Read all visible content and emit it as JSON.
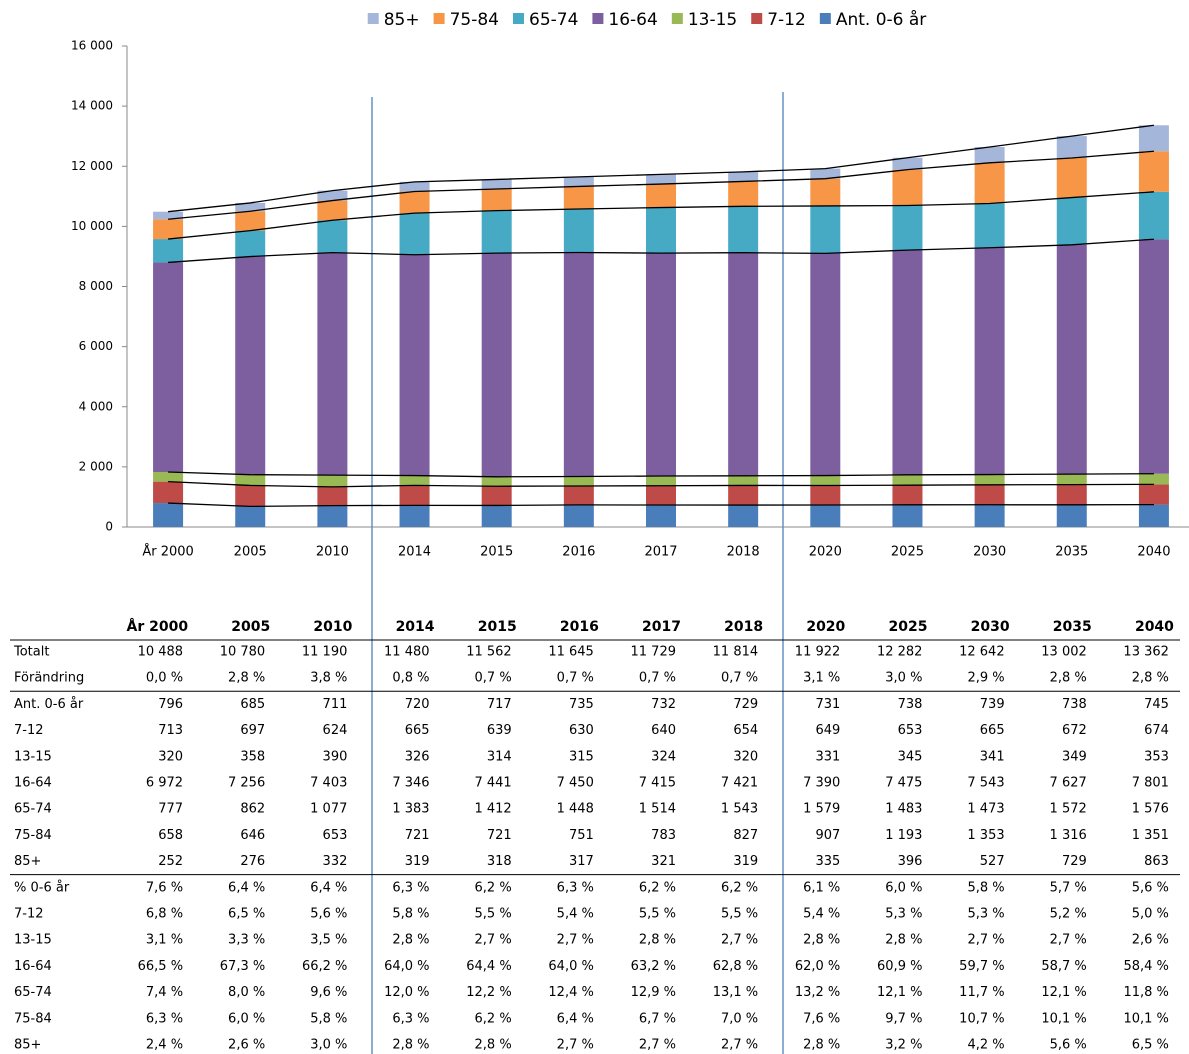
{
  "chart_data": {
    "type": "stacked-bar-line",
    "categories": [
      "År 2000",
      "2005",
      "2010",
      "2014",
      "2015",
      "2016",
      "2017",
      "2018",
      "2020",
      "2025",
      "2030",
      "2035",
      "2040"
    ],
    "series": [
      {
        "name": "Ant. 0-6 år",
        "color": "#4a7ebb",
        "values": [
          796,
          685,
          711,
          720,
          717,
          735,
          732,
          729,
          731,
          738,
          739,
          738,
          745
        ]
      },
      {
        "name": "7-12",
        "color": "#be4b48",
        "values": [
          713,
          697,
          624,
          665,
          639,
          630,
          640,
          654,
          649,
          653,
          665,
          672,
          674
        ]
      },
      {
        "name": "13-15",
        "color": "#98b954",
        "values": [
          320,
          358,
          390,
          326,
          314,
          315,
          324,
          320,
          331,
          345,
          341,
          349,
          353
        ]
      },
      {
        "name": "16-64",
        "color": "#7d5fa0",
        "values": [
          6972,
          7256,
          7403,
          7346,
          7441,
          7450,
          7415,
          7421,
          7390,
          7475,
          7543,
          7627,
          7801
        ]
      },
      {
        "name": "65-74",
        "color": "#46aac5",
        "values": [
          777,
          862,
          1077,
          1383,
          1412,
          1448,
          1514,
          1543,
          1579,
          1483,
          1473,
          1572,
          1576
        ]
      },
      {
        "name": "75-84",
        "color": "#f79646",
        "values": [
          658,
          646,
          653,
          721,
          721,
          751,
          783,
          827,
          907,
          1193,
          1353,
          1316,
          1351
        ]
      },
      {
        "name": "85+",
        "color": "#a5b6db",
        "values": [
          252,
          276,
          332,
          319,
          318,
          317,
          321,
          319,
          335,
          396,
          527,
          729,
          863
        ]
      }
    ],
    "ylim": [
      0,
      16000
    ],
    "yticks": [
      0,
      {
        "value": 2000,
        "label": "2 000"
      },
      {
        "value": 4000,
        "label": "4 000"
      },
      {
        "value": 6000,
        "label": "6 000"
      },
      {
        "value": 8000,
        "label": "8 000"
      },
      {
        "value": 10000,
        "label": "10 000"
      },
      {
        "value": 12000,
        "label": "12 000"
      },
      {
        "value": 14000,
        "label": "14 000"
      },
      {
        "value": 16000,
        "label": "16 000"
      }
    ],
    "legend": "top",
    "line_color": "#000000"
  },
  "table": {
    "rows": [
      {
        "label": "Totalt",
        "cells": [
          "10 488",
          "10 780",
          "11 190",
          "11 480",
          "11 562",
          "11 645",
          "11 729",
          "11 814",
          "11 922",
          "12 282",
          "12 642",
          "13 002",
          "13 362"
        ]
      },
      {
        "label": "Förändring",
        "cells": [
          "0,0 %",
          "2,8 %",
          "3,8 %",
          "0,8 %",
          "0,7 %",
          "0,7 %",
          "0,7 %",
          "0,7 %",
          "3,1 %",
          "3,0 %",
          "2,9 %",
          "2,8 %",
          "2,8 %"
        ]
      },
      {
        "label": "Ant. 0-6 år",
        "cells": [
          "796",
          "685",
          "711",
          "720",
          "717",
          "735",
          "732",
          "729",
          "731",
          "738",
          "739",
          "738",
          "745"
        ]
      },
      {
        "label": "7-12",
        "cells": [
          "713",
          "697",
          "624",
          "665",
          "639",
          "630",
          "640",
          "654",
          "649",
          "653",
          "665",
          "672",
          "674"
        ]
      },
      {
        "label": "13-15",
        "cells": [
          "320",
          "358",
          "390",
          "326",
          "314",
          "315",
          "324",
          "320",
          "331",
          "345",
          "341",
          "349",
          "353"
        ]
      },
      {
        "label": "16-64",
        "cells": [
          "6 972",
          "7 256",
          "7 403",
          "7 346",
          "7 441",
          "7 450",
          "7 415",
          "7 421",
          "7 390",
          "7 475",
          "7 543",
          "7 627",
          "7 801"
        ]
      },
      {
        "label": "65-74",
        "cells": [
          "777",
          "862",
          "1 077",
          "1 383",
          "1 412",
          "1 448",
          "1 514",
          "1 543",
          "1 579",
          "1 483",
          "1 473",
          "1 572",
          "1 576"
        ]
      },
      {
        "label": "75-84",
        "cells": [
          "658",
          "646",
          "653",
          "721",
          "721",
          "751",
          "783",
          "827",
          "907",
          "1 193",
          "1 353",
          "1 316",
          "1 351"
        ]
      },
      {
        "label": "85+",
        "cells": [
          "252",
          "276",
          "332",
          "319",
          "318",
          "317",
          "321",
          "319",
          "335",
          "396",
          "527",
          "729",
          "863"
        ]
      },
      {
        "label": "% 0-6 år",
        "cells": [
          "7,6 %",
          "6,4 %",
          "6,4 %",
          "6,3 %",
          "6,2 %",
          "6,3 %",
          "6,2 %",
          "6,2 %",
          "6,1 %",
          "6,0 %",
          "5,8 %",
          "5,7 %",
          "5,6 %"
        ]
      },
      {
        "label": "7-12",
        "cells": [
          "6,8 %",
          "6,5 %",
          "5,6 %",
          "5,8 %",
          "5,5 %",
          "5,4 %",
          "5,5 %",
          "5,5 %",
          "5,4 %",
          "5,3 %",
          "5,3 %",
          "5,2 %",
          "5,0 %"
        ]
      },
      {
        "label": "13-15",
        "cells": [
          "3,1 %",
          "3,3 %",
          "3,5 %",
          "2,8 %",
          "2,7 %",
          "2,7 %",
          "2,8 %",
          "2,7 %",
          "2,8 %",
          "2,8 %",
          "2,7 %",
          "2,7 %",
          "2,6 %"
        ]
      },
      {
        "label": "16-64",
        "cells": [
          "66,5 %",
          "67,3 %",
          "66,2 %",
          "64,0 %",
          "64,4 %",
          "64,0 %",
          "63,2 %",
          "62,8 %",
          "62,0 %",
          "60,9 %",
          "59,7 %",
          "58,7 %",
          "58,4 %"
        ]
      },
      {
        "label": "65-74",
        "cells": [
          "7,4 %",
          "8,0 %",
          "9,6 %",
          "12,0 %",
          "12,2 %",
          "12,4 %",
          "12,9 %",
          "13,1 %",
          "13,2 %",
          "12,1 %",
          "11,7 %",
          "12,1 %",
          "11,8 %"
        ]
      },
      {
        "label": "75-84",
        "cells": [
          "6,3 %",
          "6,0 %",
          "5,8 %",
          "6,3 %",
          "6,2 %",
          "6,4 %",
          "6,7 %",
          "7,0 %",
          "7,6 %",
          "9,7 %",
          "10,7 %",
          "10,1 %",
          "10,1 %"
        ]
      },
      {
        "label": "85+",
        "cells": [
          "2,4 %",
          "2,6 %",
          "3,0 %",
          "2,8 %",
          "2,8 %",
          "2,7 %",
          "2,7 %",
          "2,7 %",
          "2,8 %",
          "3,2 %",
          "4,2 %",
          "5,6 %",
          "6,5 %"
        ]
      }
    ]
  }
}
